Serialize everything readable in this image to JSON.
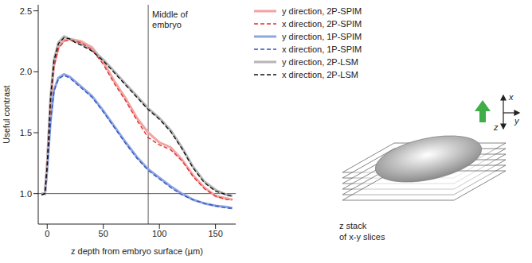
{
  "chart_data": {
    "type": "line",
    "x_label": "z depth from embryo surface (µm)",
    "y_label": "Useful contrast",
    "x": [
      -5,
      -2,
      0,
      3,
      6,
      10,
      15,
      20,
      25,
      30,
      40,
      50,
      60,
      70,
      80,
      90,
      100,
      110,
      120,
      130,
      140,
      150,
      160,
      165
    ],
    "series": [
      {
        "name": "y direction, 2P-SPIM",
        "color": "#f2a3a3",
        "line_style": "solid",
        "values": [
          1.0,
          1.0,
          1.25,
          1.75,
          2.05,
          2.2,
          2.26,
          2.27,
          2.26,
          2.25,
          2.2,
          2.08,
          1.92,
          1.78,
          1.62,
          1.5,
          1.42,
          1.38,
          1.28,
          1.15,
          1.05,
          0.98,
          0.96,
          0.95
        ]
      },
      {
        "name": "x direction, 2P-SPIM",
        "color": "#e3302b",
        "line_style": "dashed",
        "values": [
          0.99,
          1.0,
          1.24,
          1.74,
          2.04,
          2.19,
          2.25,
          2.26,
          2.25,
          2.24,
          2.18,
          2.06,
          1.9,
          1.76,
          1.6,
          1.46,
          1.4,
          1.36,
          1.27,
          1.14,
          1.04,
          0.98,
          0.95,
          0.95
        ]
      },
      {
        "name": "y direction, 1P-SPIM",
        "color": "#8ea6e0",
        "line_style": "solid",
        "values": [
          1.0,
          1.0,
          1.2,
          1.6,
          1.85,
          1.95,
          1.98,
          1.96,
          1.92,
          1.88,
          1.8,
          1.68,
          1.55,
          1.42,
          1.3,
          1.2,
          1.13,
          1.06,
          1.0,
          0.95,
          0.92,
          0.9,
          0.89,
          0.88
        ]
      },
      {
        "name": "x direction, 1P-SPIM",
        "color": "#3552c6",
        "line_style": "dashed",
        "values": [
          0.99,
          1.0,
          1.19,
          1.59,
          1.84,
          1.94,
          1.97,
          1.95,
          1.91,
          1.87,
          1.79,
          1.67,
          1.54,
          1.41,
          1.29,
          1.19,
          1.12,
          1.05,
          0.99,
          0.95,
          0.92,
          0.9,
          0.88,
          0.88
        ]
      },
      {
        "name": "y direction, 2P-LSM",
        "color": "#b5b5b5",
        "line_style": "solid",
        "values": [
          1.0,
          1.0,
          1.25,
          1.8,
          2.1,
          2.24,
          2.29,
          2.27,
          2.25,
          2.23,
          2.18,
          2.1,
          2.0,
          1.9,
          1.8,
          1.7,
          1.62,
          1.52,
          1.38,
          1.22,
          1.1,
          1.03,
          0.99,
          0.98
        ]
      },
      {
        "name": "x direction, 2P-LSM",
        "color": "#111111",
        "line_style": "dashed",
        "values": [
          0.99,
          1.0,
          1.24,
          1.79,
          2.09,
          2.23,
          2.28,
          2.27,
          2.24,
          2.22,
          2.17,
          2.09,
          1.99,
          1.89,
          1.79,
          1.69,
          1.61,
          1.51,
          1.37,
          1.21,
          1.09,
          1.02,
          0.99,
          0.98
        ]
      }
    ],
    "xlim": [
      -8,
      168
    ],
    "xticks": [
      0,
      50,
      100,
      150
    ],
    "ylim": [
      0.75,
      2.55
    ],
    "yticks": [
      {
        "value": 1,
        "label": "1.0"
      },
      1.5,
      {
        "value": 2,
        "label": "2.0"
      },
      2.5
    ],
    "reference_y": 1,
    "annotations": [
      {
        "text": [
          "Middle of",
          "embryo"
        ],
        "x": 90
      }
    ],
    "legend": "right",
    "grid": false
  },
  "diagram": {
    "axes": {
      "x": "x",
      "y": "y",
      "z": "z"
    },
    "caption": [
      "z stack",
      "of x-y slices"
    ]
  }
}
